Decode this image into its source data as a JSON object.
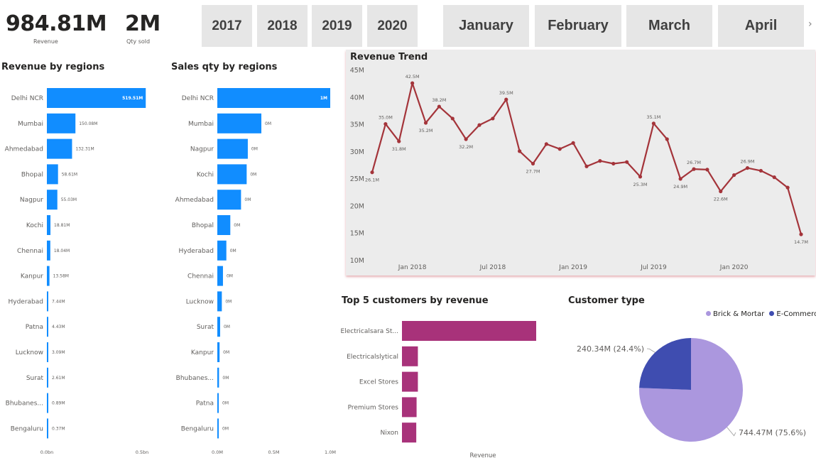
{
  "kpis": {
    "revenue": {
      "value": "984.81M",
      "label": "Revenue"
    },
    "qty": {
      "value": "2M",
      "label": "Qty sold"
    }
  },
  "years": [
    "2017",
    "2018",
    "2019",
    "2020"
  ],
  "months": [
    "January",
    "February",
    "March",
    "April"
  ],
  "colors": {
    "bar_blue": "#118dff",
    "trend": "#a4343a",
    "customers": "#a8327a",
    "brick": "#ab97de",
    "ecom": "#3f4db0"
  },
  "icons": {
    "scroll_next": "chevron-right-icon"
  },
  "chart_data": [
    {
      "id": "revenue_regions",
      "type": "bar",
      "title": "Revenue by regions",
      "orientation": "horizontal",
      "categories": [
        "Delhi NCR",
        "Mumbai",
        "Ahmedabad",
        "Bhopal",
        "Nagpur",
        "Kochi",
        "Chennai",
        "Kanpur",
        "Hyderabad",
        "Patna",
        "Lucknow",
        "Surat",
        "Bhubanes...",
        "Bengaluru"
      ],
      "values": [
        519.51,
        150.08,
        132.31,
        58.61,
        55.03,
        18.81,
        18.04,
        13.58,
        7.44,
        4.43,
        3.09,
        2.61,
        0.89,
        0.37
      ],
      "labels": [
        "519.51M",
        "150.08M",
        "132.31M",
        "58.61M",
        "55.03M",
        "18.81M",
        "18.04M",
        "13.58M",
        "7.44M",
        "4.43M",
        "3.09M",
        "2.61M",
        "0.89M",
        "0.37M"
      ],
      "xlim": [
        0,
        500
      ],
      "x_ticks": [
        {
          "v": 0,
          "label": "0.0bn"
        },
        {
          "v": 500,
          "label": "0.5bn"
        }
      ]
    },
    {
      "id": "sales_qty_regions",
      "type": "bar",
      "title": "Sales qty by regions",
      "orientation": "horizontal",
      "categories": [
        "Delhi NCR",
        "Mumbai",
        "Nagpur",
        "Kochi",
        "Ahmedabad",
        "Bhopal",
        "Hyderabad",
        "Chennai",
        "Lucknow",
        "Surat",
        "Kanpur",
        "Bhubanes...",
        "Patna",
        "Bengaluru"
      ],
      "values": [
        1.0,
        0.39,
        0.27,
        0.26,
        0.21,
        0.115,
        0.08,
        0.05,
        0.04,
        0.025,
        0.02,
        0.015,
        0.008,
        0.004
      ],
      "labels": [
        "1M",
        "0M",
        "0M",
        "0M",
        "0M",
        "0M",
        "0M",
        "0M",
        "0M",
        "0M",
        "0M",
        "0M",
        "0M",
        "0M"
      ],
      "xlim": [
        0,
        1.0
      ],
      "x_ticks": [
        {
          "v": 0,
          "label": "0.0M"
        },
        {
          "v": 0.5,
          "label": "0.5M"
        },
        {
          "v": 1.0,
          "label": "1.0M"
        }
      ]
    },
    {
      "id": "revenue_trend",
      "type": "line",
      "title": "Revenue Trend",
      "x_start": "2017-10",
      "values": [
        26.1,
        35.0,
        31.8,
        42.5,
        35.2,
        38.2,
        36.0,
        32.2,
        34.8,
        36.0,
        39.5,
        30.0,
        27.7,
        31.3,
        30.4,
        31.5,
        27.2,
        28.2,
        27.7,
        28.0,
        25.3,
        35.1,
        32.2,
        24.9,
        26.7,
        26.6,
        22.6,
        25.6,
        26.9,
        26.4,
        25.2,
        23.3,
        14.7
      ],
      "point_labels": {
        "0": "26.1M",
        "1": "35.0M",
        "2": "31.8M",
        "3": "42.5M",
        "4": "35.2M",
        "5": "38.2M",
        "7": "32.2M",
        "10": "39.5M",
        "12": "27.7M",
        "20": "25.3M",
        "21": "35.1M",
        "23": "24.9M",
        "24": "26.7M",
        "26": "22.6M",
        "28": "26.9M",
        "32": "14.7M"
      },
      "ylim": [
        10,
        45
      ],
      "y_ticks": [
        "10M",
        "15M",
        "20M",
        "25M",
        "30M",
        "35M",
        "40M",
        "45M"
      ],
      "x_ticks": [
        {
          "i": 3,
          "label": "Jan 2018"
        },
        {
          "i": 9,
          "label": "Jul 2018"
        },
        {
          "i": 15,
          "label": "Jan 2019"
        },
        {
          "i": 21,
          "label": "Jul 2019"
        },
        {
          "i": 27,
          "label": "Jan 2020"
        }
      ]
    },
    {
      "id": "top_customers",
      "type": "bar",
      "title": "Top 5 customers by revenue",
      "orientation": "horizontal",
      "categories": [
        "Electricalsara St...",
        "Electricalslytical",
        "Excel Stores",
        "Premium Stores",
        "Nixon"
      ],
      "values": [
        413,
        49,
        49,
        45,
        44
      ],
      "xlabel": "Revenue",
      "xlim": [
        0,
        413
      ]
    },
    {
      "id": "customer_type",
      "type": "pie",
      "title": "Customer type",
      "slices": [
        {
          "name": "Brick & Mortar",
          "value": 744.47,
          "label": "744.47M (75.6%)"
        },
        {
          "name": "E-Commerce",
          "value": 240.34,
          "label": "240.34M (24.4%)"
        }
      ],
      "legend": "top-right"
    }
  ]
}
